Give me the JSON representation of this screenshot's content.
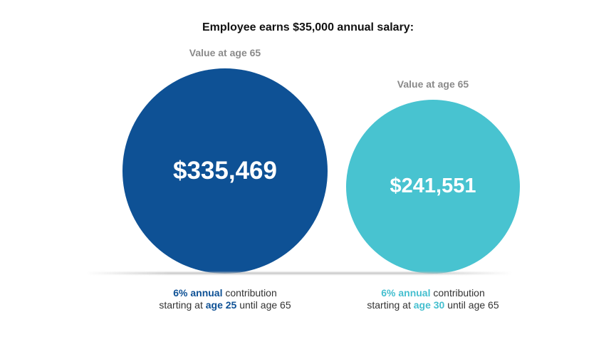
{
  "colors": {
    "dark_blue": "#0e5195",
    "teal": "#48c3d0",
    "label_gray": "#8a8a8a"
  },
  "chart_data": {
    "type": "bubble",
    "title": "Employee earns $35,000 annual salary:",
    "series": [
      {
        "value_label": "Value at age 65",
        "value": 335469,
        "value_text": "$335,469",
        "color": "#0e5195",
        "caption": {
          "line1_bold": "6% annual",
          "line1_rest": " contribution",
          "line2_pre": "starting at ",
          "line2_bold": "age 25",
          "line2_post": " until age 65"
        }
      },
      {
        "value_label": "Value at age 65",
        "value": 241551,
        "value_text": "$241,551",
        "color": "#48c3d0",
        "caption": {
          "line1_bold": "6% annual",
          "line1_rest": " contribution",
          "line2_pre": "starting at ",
          "line2_bold": "age 30",
          "line2_post": " until age 65"
        }
      }
    ]
  }
}
